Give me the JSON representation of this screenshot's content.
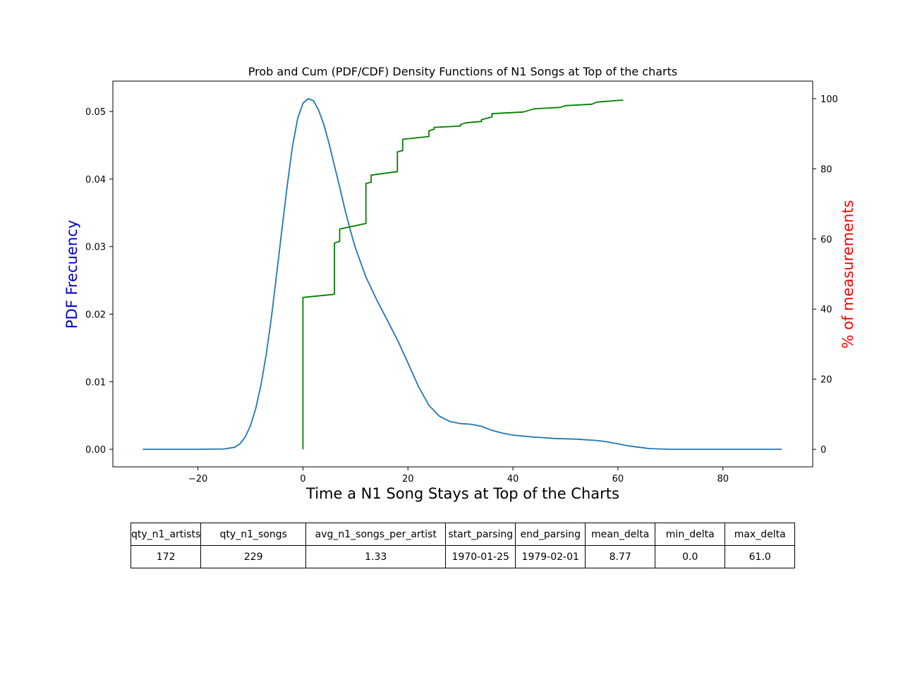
{
  "chart_data": {
    "type": "line",
    "title": "Prob and Cum (PDF/CDF) Density Functions of N1 Songs at Top of the charts",
    "xlabel": "Time a N1 Song Stays at Top of the Charts",
    "ylabel_left": "PDF Frecuency",
    "ylabel_right": "% of measurements",
    "xlim": [
      -36.2,
      97.1
    ],
    "ylim_left": [
      -0.0026,
      0.0545
    ],
    "ylim_right": [
      -5,
      105
    ],
    "x_ticks": [
      -20,
      0,
      20,
      40,
      60,
      80
    ],
    "x_tick_labels": [
      "−20",
      "0",
      "20",
      "40",
      "60",
      "80"
    ],
    "y_left_ticks": [
      0,
      0.01,
      0.02,
      0.03,
      0.04,
      0.05
    ],
    "y_left_tick_labels": [
      "0.00",
      "0.01",
      "0.02",
      "0.03",
      "0.04",
      "0.05"
    ],
    "y_right_ticks": [
      0,
      20,
      40,
      60,
      80,
      100
    ],
    "y_right_tick_labels": [
      "0",
      "20",
      "40",
      "60",
      "80",
      "100"
    ],
    "grid": false,
    "series": [
      {
        "axis": "left",
        "color": "#1f77b4",
        "points": [
          [
            -30.5,
            0
          ],
          [
            -20,
            0
          ],
          [
            -15,
            5e-05
          ],
          [
            -13,
            0.0003
          ],
          [
            -12,
            0.0008
          ],
          [
            -11,
            0.0018
          ],
          [
            -10,
            0.0035
          ],
          [
            -9,
            0.006
          ],
          [
            -8,
            0.0095
          ],
          [
            -7,
            0.014
          ],
          [
            -6,
            0.0195
          ],
          [
            -5,
            0.026
          ],
          [
            -4,
            0.0325
          ],
          [
            -3,
            0.039
          ],
          [
            -2,
            0.0448
          ],
          [
            -1,
            0.049
          ],
          [
            0,
            0.0512
          ],
          [
            1,
            0.0519
          ],
          [
            2,
            0.0516
          ],
          [
            3,
            0.0502
          ],
          [
            4,
            0.048
          ],
          [
            5,
            0.0452
          ],
          [
            6,
            0.042
          ],
          [
            7,
            0.0388
          ],
          [
            8,
            0.0355
          ],
          [
            9,
            0.0325
          ],
          [
            10,
            0.0298
          ],
          [
            12,
            0.0255
          ],
          [
            14,
            0.0222
          ],
          [
            16,
            0.0192
          ],
          [
            18,
            0.0162
          ],
          [
            20,
            0.0128
          ],
          [
            22,
            0.0093
          ],
          [
            24,
            0.0065
          ],
          [
            26,
            0.0049
          ],
          [
            28,
            0.0041
          ],
          [
            30,
            0.0038
          ],
          [
            32,
            0.0037
          ],
          [
            34,
            0.0034
          ],
          [
            36,
            0.0028
          ],
          [
            38,
            0.0024
          ],
          [
            40,
            0.0021
          ],
          [
            44,
            0.0018
          ],
          [
            48,
            0.0016
          ],
          [
            52,
            0.0015
          ],
          [
            56,
            0.0013
          ],
          [
            58,
            0.0011
          ],
          [
            60,
            0.0008
          ],
          [
            62,
            0.0005
          ],
          [
            64,
            0.0003
          ],
          [
            66,
            0.0001
          ],
          [
            70,
            0
          ],
          [
            80,
            0
          ],
          [
            91.2,
            0
          ]
        ]
      },
      {
        "axis": "right",
        "color": "#008000",
        "points": [
          [
            0,
            0
          ],
          [
            0,
            43.3
          ],
          [
            6,
            44.2
          ],
          [
            6,
            58.8
          ],
          [
            7,
            59.3
          ],
          [
            7,
            62.8
          ],
          [
            12,
            64.4
          ],
          [
            12,
            75.8
          ],
          [
            13,
            76.2
          ],
          [
            13,
            78.2
          ],
          [
            18,
            79.2
          ],
          [
            18,
            84.8
          ],
          [
            19,
            85.2
          ],
          [
            19,
            88.4
          ],
          [
            24,
            89.2
          ],
          [
            24,
            90.8
          ],
          [
            25,
            91.3
          ],
          [
            25,
            91.8
          ],
          [
            30,
            92.2
          ],
          [
            30,
            92.6
          ],
          [
            31,
            93.1
          ],
          [
            34,
            93.5
          ],
          [
            34,
            94.0
          ],
          [
            36,
            94.8
          ],
          [
            36,
            95.7
          ],
          [
            42,
            96.2
          ],
          [
            44,
            97.1
          ],
          [
            49,
            97.5
          ],
          [
            50,
            98.0
          ],
          [
            55,
            98.4
          ],
          [
            56,
            99.0
          ],
          [
            61,
            99.6
          ]
        ]
      }
    ]
  },
  "stats_table": {
    "headers": [
      "qty_n1_artists",
      "qty_n1_songs",
      "avg_n1_songs_per_artist",
      "start_parsing",
      "end_parsing",
      "mean_delta",
      "min_delta",
      "max_delta"
    ],
    "values": [
      "172",
      "229",
      "1.33",
      "1970-01-25",
      "1979-02-01",
      "8.77",
      "0.0",
      "61.0"
    ]
  },
  "colors": {
    "left_label": "#0000cc",
    "right_label": "#ff0000"
  }
}
